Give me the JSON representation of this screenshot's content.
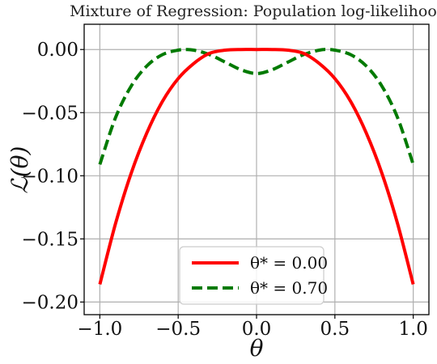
{
  "chart_data": {
    "type": "line",
    "title": "Mixture of Regression: Population log-likelihood",
    "xlabel": "θ",
    "ylabel": "ℒ(θ)",
    "xlim": [
      -1.1,
      1.1
    ],
    "ylim": [
      -0.21,
      0.02
    ],
    "xticks": [
      -1.0,
      -0.5,
      0.0,
      0.5,
      1.0
    ],
    "xtick_labels": [
      "−1.0",
      "−0.5",
      "0.0",
      "0.5",
      "1.0"
    ],
    "yticks": [
      0.0,
      -0.05,
      -0.1,
      -0.15,
      -0.2
    ],
    "ytick_labels": [
      "0.00",
      "−0.05",
      "−0.10",
      "−0.15",
      "−0.20"
    ],
    "grid": true,
    "legend_position": "bottom-center",
    "series": [
      {
        "name": "θ* = 0.00",
        "color": "#ff0000",
        "style": "solid",
        "x": [
          -1.0,
          -0.9,
          -0.8,
          -0.7,
          -0.6,
          -0.5,
          -0.4,
          -0.3,
          -0.2,
          -0.1,
          0.0,
          0.1,
          0.2,
          0.3,
          0.4,
          0.5,
          0.6,
          0.7,
          0.8,
          0.9,
          1.0
        ],
        "y": [
          -0.186,
          -0.138,
          -0.098,
          -0.066,
          -0.041,
          -0.023,
          -0.011,
          -0.003,
          -0.0005,
          0.0,
          0.0,
          0.0,
          -0.0005,
          -0.003,
          -0.011,
          -0.023,
          -0.041,
          -0.066,
          -0.098,
          -0.138,
          -0.186
        ]
      },
      {
        "name": "θ* = 0.70",
        "color": "#007a00",
        "style": "dashed",
        "x": [
          -1.0,
          -0.9,
          -0.8,
          -0.7,
          -0.6,
          -0.5,
          -0.45,
          -0.4,
          -0.3,
          -0.2,
          -0.1,
          0.0,
          0.1,
          0.2,
          0.3,
          0.4,
          0.45,
          0.5,
          0.6,
          0.7,
          0.8,
          0.9,
          1.0
        ],
        "y": [
          -0.091,
          -0.054,
          -0.029,
          -0.013,
          -0.004,
          -0.0005,
          0.0,
          -0.0005,
          -0.004,
          -0.01,
          -0.016,
          -0.019,
          -0.016,
          -0.01,
          -0.004,
          -0.0005,
          0.0,
          -0.0005,
          -0.004,
          -0.013,
          -0.029,
          -0.054,
          -0.091
        ]
      }
    ]
  }
}
